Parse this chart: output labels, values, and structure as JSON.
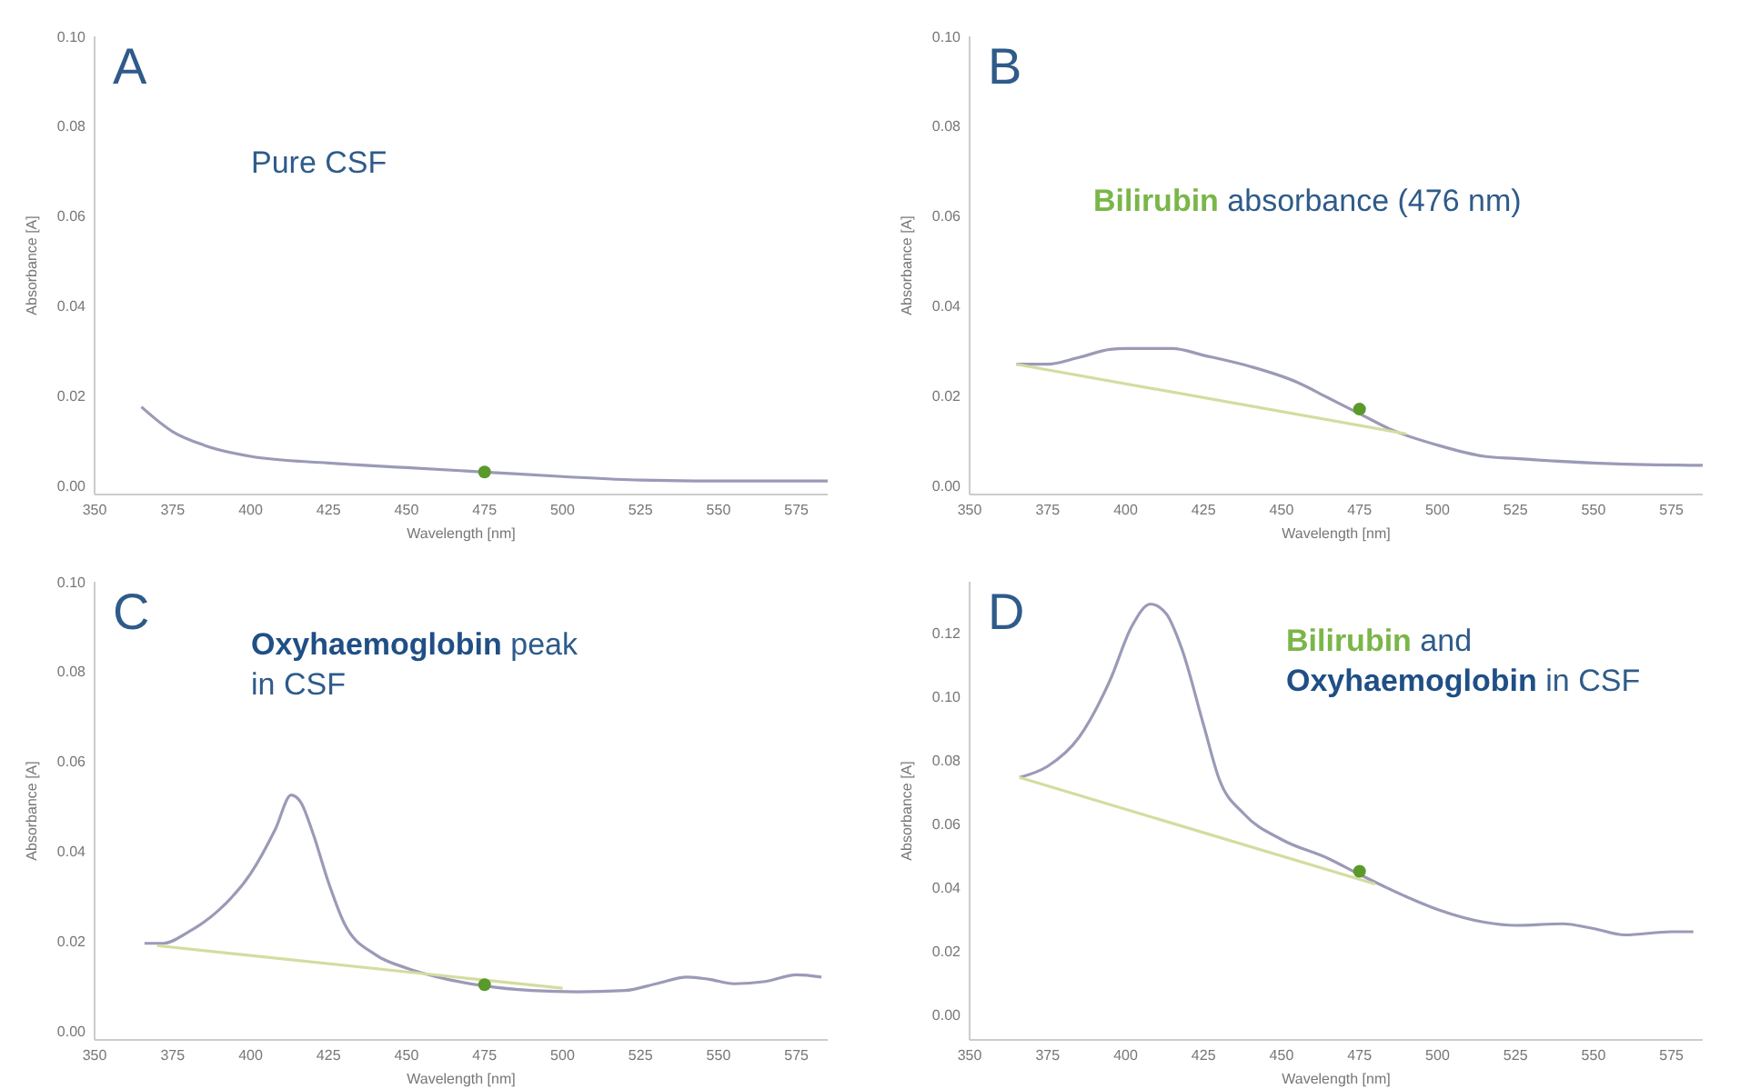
{
  "chart_data": [
    {
      "type": "line",
      "title": "A",
      "annotations": [
        "Pure CSF"
      ],
      "xlabel": "Wavelength [nm]",
      "ylabel": "Absorbance [A]",
      "xlim": [
        350,
        585
      ],
      "xticks": [
        350,
        375,
        400,
        425,
        450,
        475,
        500,
        525,
        550,
        575
      ],
      "ylim": [
        -0.002,
        0.1
      ],
      "yticks": [
        {
          "value": 0,
          "label": "0.00"
        },
        {
          "value": 0.02,
          "label": "0.02"
        },
        {
          "value": 0.04,
          "label": "0.04"
        },
        {
          "value": 0.06,
          "label": "0.06"
        },
        {
          "value": 0.08,
          "label": "0.08"
        },
        {
          "value": 0.1,
          "label": "0.10"
        }
      ],
      "grid": false,
      "series": [
        {
          "color": "#9a9ab8",
          "x": [
            365,
            375,
            385,
            400,
            425,
            450,
            475,
            500,
            525,
            550,
            585
          ],
          "values": [
            0.0175,
            0.012,
            0.009,
            0.0065,
            0.005,
            0.004,
            0.003,
            0.002,
            0.0012,
            0.001,
            0.001
          ]
        },
        {
          "type": "scatter",
          "color": "#5a9a2a",
          "x": [
            475
          ],
          "values": [
            0.003
          ]
        }
      ]
    },
    {
      "type": "line",
      "title": "B",
      "annotations": [
        "Bilirubin absorbance (476 nm)"
      ],
      "xlabel": "Wavelength [nm]",
      "ylabel": "Absorbance [A]",
      "xlim": [
        350,
        585
      ],
      "xticks": [
        350,
        375,
        400,
        425,
        450,
        475,
        500,
        525,
        550,
        575
      ],
      "ylim": [
        -0.002,
        0.1
      ],
      "yticks": [
        {
          "value": 0,
          "label": "0.00"
        },
        {
          "value": 0.02,
          "label": "0.02"
        },
        {
          "value": 0.04,
          "label": "0.04"
        },
        {
          "value": 0.06,
          "label": "0.06"
        },
        {
          "value": 0.08,
          "label": "0.08"
        },
        {
          "value": 0.1,
          "label": "0.10"
        }
      ],
      "grid": false,
      "series": [
        {
          "color": "#9a9ab8",
          "x": [
            365,
            375,
            385,
            395,
            400,
            415,
            425,
            440,
            455,
            465,
            475,
            485,
            500,
            515,
            525,
            550,
            585
          ],
          "values": [
            0.027,
            0.027,
            0.0285,
            0.0303,
            0.0305,
            0.0305,
            0.029,
            0.0265,
            0.023,
            0.0195,
            0.016,
            0.0125,
            0.009,
            0.0065,
            0.006,
            0.005,
            0.0045
          ]
        },
        {
          "color": "#d4dca0",
          "x": [
            365,
            490
          ],
          "values": [
            0.027,
            0.0115
          ]
        },
        {
          "type": "scatter",
          "color": "#5a9a2a",
          "x": [
            475
          ],
          "values": [
            0.017
          ]
        }
      ]
    },
    {
      "type": "line",
      "title": "C",
      "annotations": [
        "Oxyhaemoglobin peak",
        "in CSF"
      ],
      "xlabel": "Wavelength [nm]",
      "ylabel": "Absorbance [A]",
      "xlim": [
        350,
        585
      ],
      "xticks": [
        350,
        375,
        400,
        425,
        450,
        475,
        500,
        525,
        550,
        575
      ],
      "ylim": [
        -0.002,
        0.1
      ],
      "yticks": [
        {
          "value": 0,
          "label": "0.00"
        },
        {
          "value": 0.02,
          "label": "0.02"
        },
        {
          "value": 0.04,
          "label": "0.04"
        },
        {
          "value": 0.06,
          "label": "0.06"
        },
        {
          "value": 0.08,
          "label": "0.08"
        },
        {
          "value": 0.1,
          "label": "0.10"
        }
      ],
      "grid": false,
      "series": [
        {
          "color": "#9a9ab8",
          "x": [
            366,
            372,
            380,
            390,
            400,
            408,
            413,
            416,
            420,
            425,
            430,
            440,
            450,
            460,
            475,
            490,
            505,
            520,
            530,
            540,
            547,
            555,
            565,
            575,
            583
          ],
          "values": [
            0.0195,
            0.0195,
            0.022,
            0.027,
            0.035,
            0.045,
            0.0525,
            0.051,
            0.044,
            0.033,
            0.024,
            0.017,
            0.014,
            0.012,
            0.01,
            0.009,
            0.0087,
            0.009,
            0.0105,
            0.012,
            0.0115,
            0.0105,
            0.011,
            0.0125,
            0.012
          ]
        },
        {
          "color": "#d4dca0",
          "x": [
            370,
            500
          ],
          "values": [
            0.019,
            0.0095
          ]
        },
        {
          "type": "scatter",
          "color": "#5a9a2a",
          "x": [
            475
          ],
          "values": [
            0.0103
          ]
        }
      ]
    },
    {
      "type": "line",
      "title": "D",
      "annotations": [
        "Bilirubin and",
        "Oxyhaemoglobin in CSF"
      ],
      "xlabel": "Wavelength [nm]",
      "ylabel": "Absorbance [A]",
      "xlim": [
        350,
        585
      ],
      "xticks": [
        350,
        375,
        400,
        425,
        450,
        475,
        500,
        525,
        550,
        575
      ],
      "ylim": [
        -0.008,
        0.136
      ],
      "yticks": [
        {
          "value": 0,
          "label": "0.00"
        },
        {
          "value": 0.02,
          "label": "0.02"
        },
        {
          "value": 0.04,
          "label": "0.04"
        },
        {
          "value": 0.06,
          "label": "0.06"
        },
        {
          "value": 0.08,
          "label": "0.08"
        },
        {
          "value": 0.1,
          "label": "0.10"
        },
        {
          "value": 0.12,
          "label": "0.12"
        }
      ],
      "grid": false,
      "series": [
        {
          "color": "#9a9ab8",
          "x": [
            366,
            375,
            385,
            395,
            402,
            408,
            413,
            418,
            425,
            430,
            438,
            450,
            465,
            475,
            490,
            500,
            515,
            525,
            540,
            550,
            560,
            575,
            582
          ],
          "values": [
            0.0745,
            0.078,
            0.087,
            0.105,
            0.122,
            0.129,
            0.126,
            0.115,
            0.091,
            0.074,
            0.063,
            0.055,
            0.049,
            0.044,
            0.037,
            0.033,
            0.029,
            0.028,
            0.0285,
            0.027,
            0.025,
            0.026,
            0.026
          ]
        },
        {
          "color": "#d4dca0",
          "x": [
            366,
            480
          ],
          "values": [
            0.0745,
            0.041
          ]
        },
        {
          "type": "scatter",
          "color": "#5a9a2a",
          "x": [
            475
          ],
          "values": [
            0.045
          ]
        }
      ]
    }
  ]
}
